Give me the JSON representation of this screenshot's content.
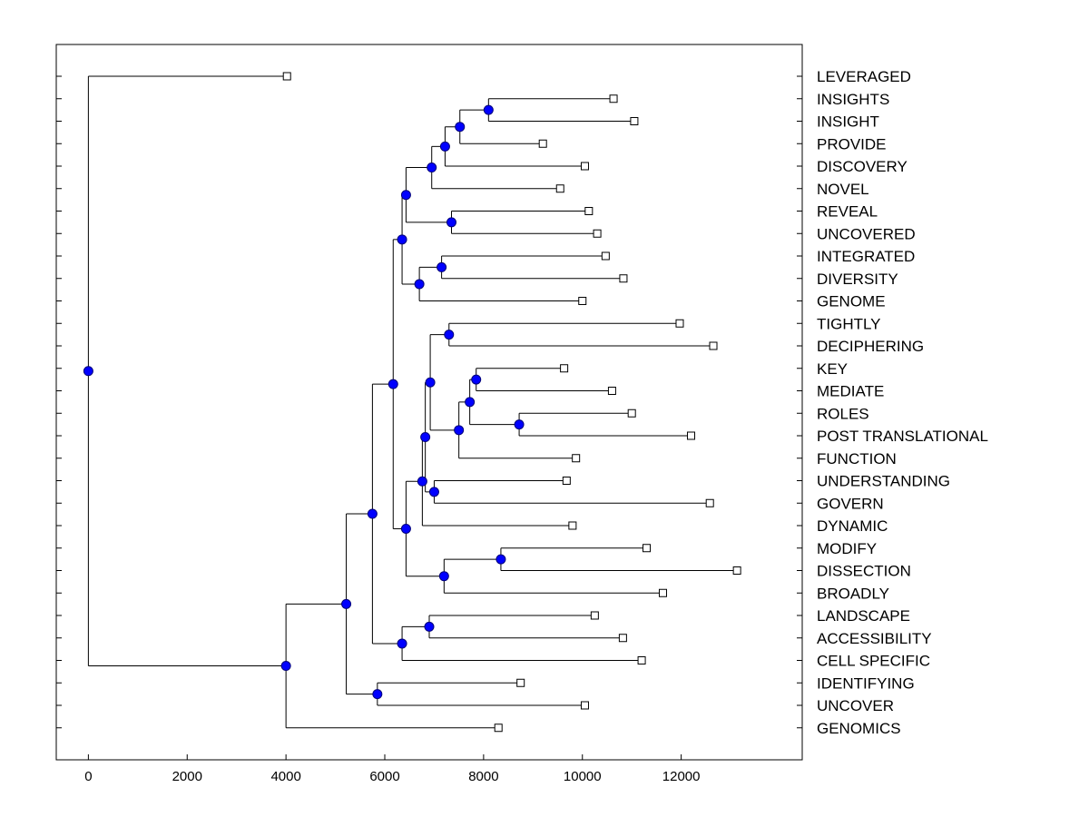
{
  "chart_data": {
    "type": "dendrogram",
    "orientation": "horizontal",
    "xlim": [
      -650,
      14450
    ],
    "xticks": [
      0,
      2000,
      4000,
      6000,
      8000,
      10000,
      12000
    ],
    "grid": false,
    "colors": {
      "node": "#0000ff",
      "leaf": "#ffffff",
      "line": "#000000"
    },
    "leaves": [
      {
        "id": "L0",
        "label": "LEVERAGED",
        "x": 4020
      },
      {
        "id": "L1",
        "label": "INSIGHTS",
        "x": 10630
      },
      {
        "id": "L2",
        "label": "INSIGHT",
        "x": 11050
      },
      {
        "id": "L3",
        "label": "PROVIDE",
        "x": 9200
      },
      {
        "id": "L4",
        "label": "DISCOVERY",
        "x": 10050
      },
      {
        "id": "L5",
        "label": "NOVEL",
        "x": 9550
      },
      {
        "id": "L6",
        "label": "REVEAL",
        "x": 10130
      },
      {
        "id": "L7",
        "label": "UNCOVERED",
        "x": 10300
      },
      {
        "id": "L8",
        "label": "INTEGRATED",
        "x": 10470
      },
      {
        "id": "L9",
        "label": "DIVERSITY",
        "x": 10830
      },
      {
        "id": "L10",
        "label": "GENOME",
        "x": 10000
      },
      {
        "id": "L11",
        "label": "TIGHTLY",
        "x": 11970
      },
      {
        "id": "L12",
        "label": "DECIPHERING",
        "x": 12650
      },
      {
        "id": "L13",
        "label": "KEY",
        "x": 9630
      },
      {
        "id": "L14",
        "label": "MEDIATE",
        "x": 10600
      },
      {
        "id": "L15",
        "label": "ROLES",
        "x": 11000
      },
      {
        "id": "L16",
        "label": "POST TRANSLATIONAL",
        "x": 12200
      },
      {
        "id": "L17",
        "label": "FUNCTION",
        "x": 9870
      },
      {
        "id": "L18",
        "label": "UNDERSTANDING",
        "x": 9680
      },
      {
        "id": "L19",
        "label": "GOVERN",
        "x": 12580
      },
      {
        "id": "L20",
        "label": "DYNAMIC",
        "x": 9800
      },
      {
        "id": "L21",
        "label": "MODIFY",
        "x": 11300
      },
      {
        "id": "L22",
        "label": "DISSECTION",
        "x": 13130
      },
      {
        "id": "L23",
        "label": "BROADLY",
        "x": 11630
      },
      {
        "id": "L24",
        "label": "LANDSCAPE",
        "x": 10250
      },
      {
        "id": "L25",
        "label": "ACCESSIBILITY",
        "x": 10820
      },
      {
        "id": "L26",
        "label": "CELL SPECIFIC",
        "x": 11200
      },
      {
        "id": "L27",
        "label": "IDENTIFYING",
        "x": 8750
      },
      {
        "id": "L28",
        "label": "UNCOVER",
        "x": 10050
      },
      {
        "id": "L29",
        "label": "GENOMICS",
        "x": 8300
      }
    ],
    "merges": [
      {
        "id": "N1",
        "x": 8100,
        "children": [
          "L1",
          "L2"
        ]
      },
      {
        "id": "N2",
        "x": 7520,
        "children": [
          "N1",
          "L3"
        ]
      },
      {
        "id": "N3",
        "x": 7220,
        "children": [
          "N2",
          "L4"
        ]
      },
      {
        "id": "N4",
        "x": 6950,
        "children": [
          "N3",
          "L5"
        ]
      },
      {
        "id": "N5",
        "x": 7350,
        "children": [
          "L6",
          "L7"
        ]
      },
      {
        "id": "N6",
        "x": 6430,
        "children": [
          "N4",
          "N5"
        ]
      },
      {
        "id": "N7",
        "x": 7150,
        "children": [
          "L8",
          "L9"
        ]
      },
      {
        "id": "N8",
        "x": 6700,
        "children": [
          "N7",
          "L10"
        ]
      },
      {
        "id": "N9",
        "x": 6350,
        "children": [
          "N6",
          "N8"
        ]
      },
      {
        "id": "N10",
        "x": 7300,
        "children": [
          "L11",
          "L12"
        ]
      },
      {
        "id": "N11",
        "x": 7850,
        "children": [
          "L13",
          "L14"
        ]
      },
      {
        "id": "N12",
        "x": 8720,
        "children": [
          "L15",
          "L16"
        ]
      },
      {
        "id": "N13",
        "x": 7720,
        "children": [
          "N11",
          "N12"
        ]
      },
      {
        "id": "N14",
        "x": 7500,
        "children": [
          "N13",
          "L17"
        ]
      },
      {
        "id": "N15",
        "x": 6920,
        "children": [
          "N10",
          "N14"
        ]
      },
      {
        "id": "N16",
        "x": 7000,
        "children": [
          "L18",
          "L19"
        ]
      },
      {
        "id": "N17",
        "x": 6820,
        "children": [
          "N15",
          "N16"
        ]
      },
      {
        "id": "N18",
        "x": 6760,
        "children": [
          "N17",
          "L20"
        ]
      },
      {
        "id": "N19",
        "x": 8350,
        "children": [
          "L21",
          "L22"
        ]
      },
      {
        "id": "N20",
        "x": 7200,
        "children": [
          "N19",
          "L23"
        ]
      },
      {
        "id": "N21",
        "x": 6430,
        "children": [
          "N18",
          "N20"
        ]
      },
      {
        "id": "N22",
        "x": 6170,
        "children": [
          "N9",
          "N21"
        ]
      },
      {
        "id": "N23",
        "x": 6900,
        "children": [
          "L24",
          "L25"
        ]
      },
      {
        "id": "N24",
        "x": 6350,
        "children": [
          "N23",
          "L26"
        ]
      },
      {
        "id": "N25",
        "x": 5750,
        "children": [
          "N22",
          "N24"
        ]
      },
      {
        "id": "N26",
        "x": 5850,
        "children": [
          "L27",
          "L28"
        ]
      },
      {
        "id": "N27",
        "x": 5220,
        "children": [
          "N25",
          "N26"
        ]
      },
      {
        "id": "N28",
        "x": 4000,
        "children": [
          "N27",
          "L29"
        ]
      },
      {
        "id": "N29",
        "x": 0,
        "children": [
          "L0",
          "N28"
        ]
      }
    ]
  }
}
